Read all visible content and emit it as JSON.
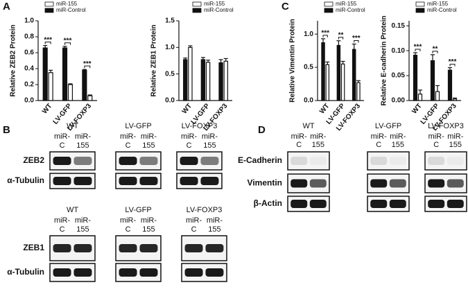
{
  "panels": [
    "A",
    "B",
    "C",
    "D"
  ],
  "chart_data": [
    {
      "type": "bar",
      "y_label": "Relative ZEB2 Protein",
      "categories": [
        "WT",
        "LV-GFP",
        "LV-FOXP3"
      ],
      "series": [
        {
          "name": "miR-155",
          "color": "#ffffff",
          "values": [
            0.35,
            0.2,
            0.06
          ],
          "errors": [
            0.03,
            0.01,
            0.01
          ]
        },
        {
          "name": "miR-Control",
          "color": "#111111",
          "values": [
            0.66,
            0.66,
            0.38
          ],
          "errors": [
            0.03,
            0.02,
            0.01
          ]
        }
      ],
      "ylim": [
        0,
        1.0
      ],
      "yticks": [
        {
          "value": 0,
          "label": "0.0"
        },
        0.2,
        0.4,
        0.6,
        0.8,
        {
          "value": 1,
          "label": "1.0"
        }
      ],
      "annotations": [
        "***",
        "***",
        "***"
      ]
    },
    {
      "type": "bar",
      "y_label": "Relative ZEB1 Protein",
      "categories": [
        "WT",
        "LV-GFP",
        "LV-FOXP3"
      ],
      "series": [
        {
          "name": "miR-155",
          "color": "#ffffff",
          "values": [
            1.0,
            0.72,
            0.74
          ],
          "errors": [
            0.03,
            0.04,
            0.05
          ]
        },
        {
          "name": "miR-Control",
          "color": "#111111",
          "values": [
            0.77,
            0.77,
            0.71
          ],
          "errors": [
            0.03,
            0.04,
            0.06
          ]
        }
      ],
      "ylim": [
        0,
        1.5
      ],
      "yticks": [
        {
          "value": 0,
          "label": "0.0"
        },
        0.5,
        {
          "value": 1,
          "label": "1.0"
        },
        1.5
      ]
    },
    {
      "type": "bar",
      "y_label": "Relative Vimentin Protein",
      "categories": [
        "WT",
        "LV-GFP",
        "LV-FOXP3"
      ],
      "series": [
        {
          "name": "miR-155",
          "color": "#ffffff",
          "values": [
            0.54,
            0.55,
            0.27
          ],
          "errors": [
            0.04,
            0.04,
            0.03
          ]
        },
        {
          "name": "miR-Control",
          "color": "#111111",
          "values": [
            0.87,
            0.83,
            0.77
          ],
          "errors": [
            0.06,
            0.07,
            0.08
          ]
        }
      ],
      "ylim": [
        0,
        1.2
      ],
      "yticks": [
        {
          "value": 0,
          "label": "0.0"
        },
        0.5,
        {
          "value": 1,
          "label": "1.0"
        }
      ],
      "annotations": [
        "***",
        "**",
        "***"
      ]
    },
    {
      "type": "bar",
      "y_label": "Relative E-cadherin Protein",
      "categories": [
        "WT",
        "LV-GFP",
        "LV-FOXP3"
      ],
      "series": [
        {
          "name": "miR-155",
          "color": "#ffffff",
          "values": [
            0.013,
            0.018,
            0.003
          ],
          "errors": [
            0.008,
            0.012,
            0.002
          ]
        },
        {
          "name": "miR-Control",
          "color": "#111111",
          "values": [
            0.091,
            0.08,
            0.061
          ],
          "errors": [
            0.005,
            0.012,
            0.005
          ]
        }
      ],
      "ylim": [
        0,
        0.16
      ],
      "yticks": [
        {
          "value": 0,
          "label": "0.00"
        },
        0.05,
        {
          "value": 0.1,
          "label": "0.10"
        },
        0.15
      ],
      "annotations": [
        "***",
        "**",
        "***"
      ]
    }
  ],
  "blots": [
    {
      "groups": [
        "WT",
        "LV-GFP",
        "LV-FOXP3"
      ],
      "lane_top": [
        "miR-",
        "miR-"
      ],
      "lane_bottom": [
        "C",
        "155"
      ],
      "rows": [
        "ZEB2",
        "α-Tubulin"
      ]
    },
    {
      "groups": [
        "WT",
        "LV-GFP",
        "LV-FOXP3"
      ],
      "lane_top": [
        "miR-",
        "miR-"
      ],
      "lane_bottom": [
        "C",
        "155"
      ],
      "rows": [
        "ZEB1",
        "α-Tubulin"
      ]
    },
    {
      "groups": [
        "WT",
        "LV-GFP",
        "LV-FOXP3"
      ],
      "lane_top": [
        "miR-",
        "miR-"
      ],
      "lane_bottom": [
        "C",
        "155"
      ],
      "rows": [
        "E-Cadherin",
        "Vimentin",
        "β-Actin"
      ]
    }
  ]
}
